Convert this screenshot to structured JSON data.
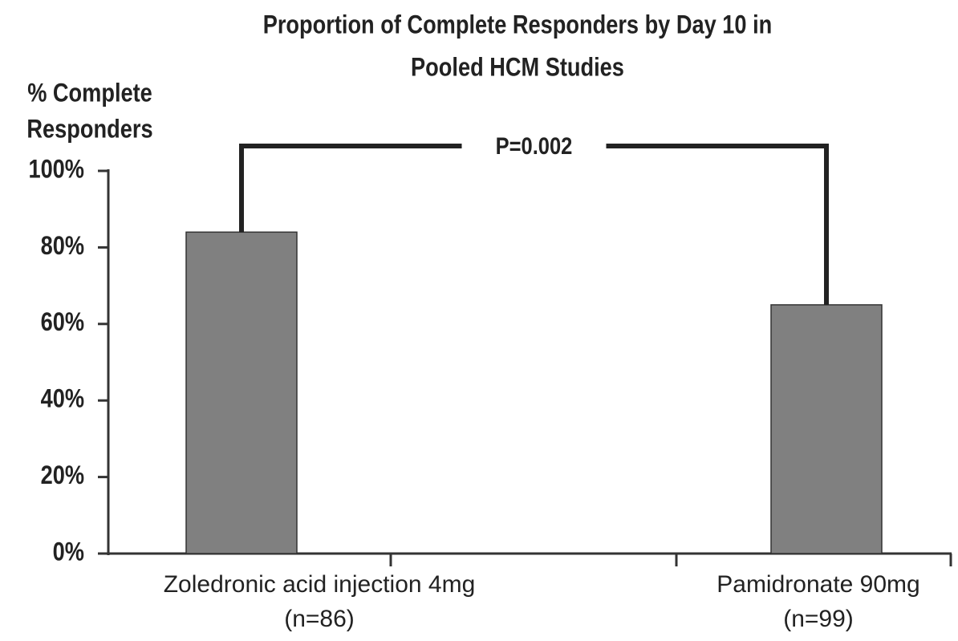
{
  "chart_data": {
    "type": "bar",
    "title": [
      "Proportion of Complete Responders by Day 10 in",
      "Pooled HCM Studies"
    ],
    "y_label": [
      "% Complete",
      "Responders"
    ],
    "categories": [
      "Zoledronic acid injection 4mg",
      "Pamidronate 90mg"
    ],
    "category_notes": [
      "(n=86)",
      "(n=99)"
    ],
    "values": [
      84,
      65
    ],
    "color": "#808080",
    "ylim": [
      0,
      100
    ],
    "yticks": [
      {
        "value": 0,
        "label": "0%"
      },
      {
        "value": 20,
        "label": "20%"
      },
      {
        "value": 40,
        "label": "40%"
      },
      {
        "value": 60,
        "label": "60%"
      },
      {
        "value": 80,
        "label": "80%"
      },
      {
        "value": 100,
        "label": "100%"
      }
    ],
    "annotation": "P=0.002"
  }
}
